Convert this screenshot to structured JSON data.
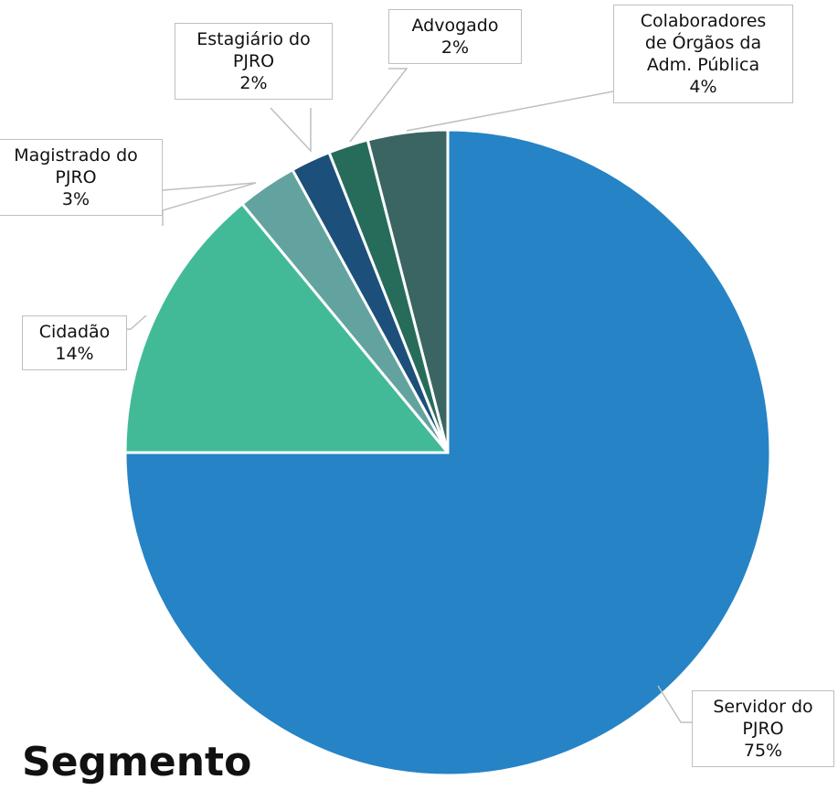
{
  "chart_data": {
    "type": "pie",
    "title": "Segmento",
    "categories": [
      "Servidor do\nPJRO",
      "Cidadão",
      "Magistrado do\nPJRO",
      "Estagiário do\nPJRO",
      "Advogado",
      "Colaboradores\nde Órgãos da\nAdm. Pública"
    ],
    "values": [
      75,
      14,
      3,
      2,
      2,
      4
    ],
    "value_labels": [
      "75%",
      "14%",
      "3%",
      "2%",
      "2%",
      "4%"
    ],
    "colors": [
      "#2683c6",
      "#42ba97",
      "#62a39f",
      "#1c4f7a",
      "#276c5a",
      "#3a6562"
    ]
  }
}
